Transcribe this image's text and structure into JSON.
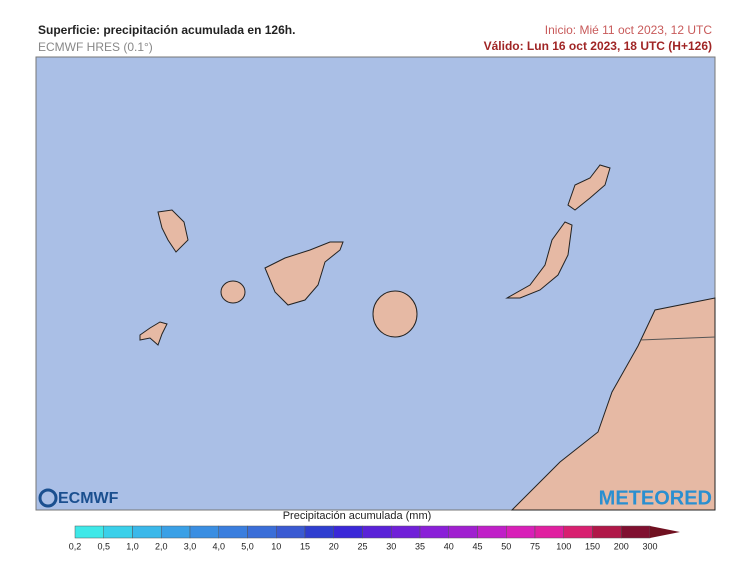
{
  "header": {
    "title": "Superficie: precipitación acumulada en 126h.",
    "subtitle": "ECMWF HRES (0.1°)",
    "start": "Inicio: Mié 11 oct 2023, 12 UTC",
    "valid": "Válido: Lun 16 oct 2023, 18 UTC (H+126)"
  },
  "logos": {
    "left": "ECMWF",
    "right": "METEORED"
  },
  "legend": {
    "title": "Precipitación acumulada (mm)",
    "labels": [
      "0,2",
      "0,5",
      "1,0",
      "2,0",
      "3,0",
      "4,0",
      "5,0",
      "10",
      "15",
      "20",
      "25",
      "30",
      "35",
      "40",
      "45",
      "50",
      "75",
      "100",
      "150",
      "200",
      "300"
    ]
  }
}
